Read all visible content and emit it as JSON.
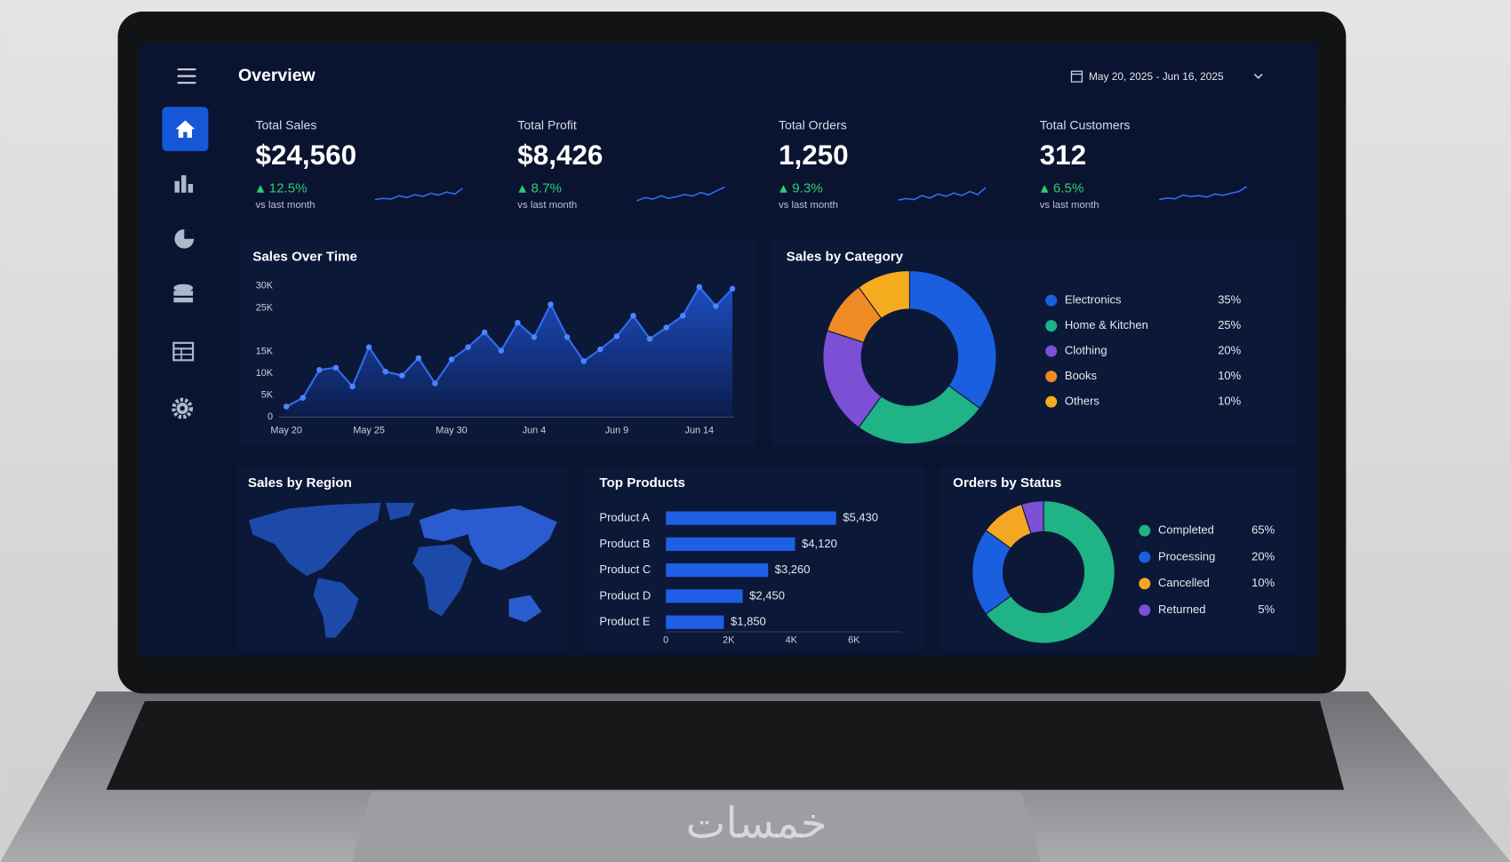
{
  "header": {
    "title": "Overview",
    "date_range": "May 20, 2025 - Jun 16, 2025"
  },
  "kpis": [
    {
      "label": "Total Sales",
      "value": "$24,560",
      "change": "12.5%",
      "note": "vs last month",
      "trend": [
        3,
        3.5,
        3.2,
        4.5,
        3.8,
        5,
        4.2,
        5.5,
        4.8,
        6,
        5.2,
        7.5
      ]
    },
    {
      "label": "Total Profit",
      "value": "$8,426",
      "change": "8.7%",
      "note": "vs last month",
      "trend": [
        2.5,
        3.8,
        3.2,
        4.5,
        3.5,
        4.2,
        5,
        4.4,
        5.8,
        4.9,
        6.5,
        8
      ]
    },
    {
      "label": "Total Orders",
      "value": "1,250",
      "change": "9.3%",
      "note": "vs last month",
      "trend": [
        2.8,
        3.4,
        3,
        4.6,
        3.6,
        5.2,
        4.3,
        5.6,
        4.6,
        6.2,
        5,
        7.8
      ]
    },
    {
      "label": "Total Customers",
      "value": "312",
      "change": "6.5%",
      "note": "vs last month",
      "trend": [
        3,
        3.6,
        3.3,
        4.8,
        4.2,
        4.6,
        4,
        5.2,
        4.7,
        5.5,
        6.2,
        8.2
      ]
    }
  ],
  "sales_over_time": {
    "type": "area",
    "title": "Sales Over Time",
    "x": [
      "May 20",
      null,
      null,
      null,
      null,
      "May 25",
      null,
      null,
      null,
      null,
      "May 30",
      null,
      null,
      null,
      null,
      "Jun 4",
      null,
      null,
      null,
      null,
      "Jun 9",
      null,
      null,
      null,
      null,
      "Jun 14",
      null,
      null
    ],
    "values": [
      2400,
      4400,
      10800,
      11300,
      7000,
      16000,
      10400,
      9500,
      13500,
      7700,
      13200,
      16000,
      19400,
      15200,
      21600,
      18300,
      25800,
      18300,
      12800,
      15500,
      18500,
      23200,
      17900,
      20500,
      23200,
      29800,
      25400,
      29400
    ],
    "ylim": [
      0,
      30000
    ],
    "yticks": [
      0,
      {
        "value": 5000,
        "label": "5K"
      },
      {
        "value": 10000,
        "label": "10K"
      },
      {
        "value": 15000,
        "label": "15K"
      },
      {
        "value": 25000,
        "label": "25K"
      },
      {
        "value": 30000,
        "label": "30K"
      }
    ],
    "color": "#2f6bf0"
  },
  "sales_by_category": {
    "type": "donut",
    "title": "Sales by Category",
    "categories": [
      "Electronics",
      "Home & Kitchen",
      "Clothing",
      "Books",
      "Others"
    ],
    "values": [
      35,
      25,
      20,
      10,
      10
    ],
    "value_labels": [
      "35%",
      "25%",
      "20%",
      "10%",
      "10%"
    ],
    "colors": [
      "#1a5fe0",
      "#1fb386",
      "#7b4fd6",
      "#f08a24",
      "#f5ac1f"
    ]
  },
  "sales_by_region": {
    "title": "Sales by Region"
  },
  "top_products": {
    "type": "bar",
    "title": "Top Products",
    "categories": [
      "Product A",
      "Product B",
      "Product C",
      "Product D",
      "Product E"
    ],
    "values": [
      5430,
      4120,
      3260,
      2450,
      1850
    ],
    "value_labels": [
      "$5,430",
      "$4,120",
      "$3,260",
      "$2,450",
      "$1,850"
    ],
    "xlim": [
      0,
      7500
    ],
    "xticks": [
      0,
      {
        "value": 2000,
        "label": "2K"
      },
      {
        "value": 4000,
        "label": "4K"
      },
      {
        "value": 6000,
        "label": "6K"
      }
    ],
    "color": "#1f5fe6"
  },
  "orders_by_status": {
    "type": "donut",
    "title": "Orders by Status",
    "categories": [
      "Completed",
      "Processing",
      "Cancelled",
      "Returned"
    ],
    "values": [
      65,
      20,
      10,
      5
    ],
    "value_labels": [
      "65%",
      "20%",
      "10%",
      "5%"
    ],
    "colors": [
      "#1fb386",
      "#1a5fe0",
      "#f5a623",
      "#7b4fd6"
    ]
  },
  "watermark": "خمسات"
}
